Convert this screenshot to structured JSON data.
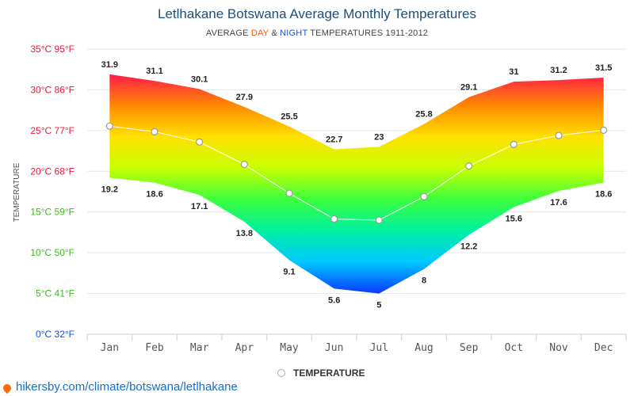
{
  "title": "Letlhakane Botswana Average Monthly Temperatures",
  "subtitle": {
    "prefix": "AVERAGE ",
    "day": "DAY",
    "mid": " & ",
    "night": "NIGHT",
    "suffix": " TEMPERATURES 1911-2012"
  },
  "legend": {
    "label": "TEMPERATURE",
    "marker_color": "#aaaaaa"
  },
  "source_text": "hikersby.com/climate/botswana/letlhakane",
  "colors": {
    "title": "#1f4e79",
    "day_accent": "#ff5a00",
    "night_accent": "#1a4fd6",
    "link": "#1a6fc4",
    "gradient": [
      "#ff1a4a",
      "#ff8a00",
      "#ffe100",
      "#c8ff00",
      "#3cff3c",
      "#00f0a0",
      "#00c8ff",
      "#0a3cff"
    ]
  },
  "chart_data": {
    "type": "area",
    "categories": [
      "Jan",
      "Feb",
      "Mar",
      "Apr",
      "May",
      "Jun",
      "Jul",
      "Aug",
      "Sep",
      "Oct",
      "Nov",
      "Dec"
    ],
    "series": [
      {
        "name": "DAY",
        "values": [
          31.9,
          31.1,
          30.1,
          27.9,
          25.5,
          22.7,
          23,
          25.8,
          29.1,
          31,
          31.2,
          31.5
        ]
      },
      {
        "name": "NIGHT",
        "values": [
          19.2,
          18.6,
          17.1,
          13.8,
          9.1,
          5.6,
          5,
          8,
          12.2,
          15.6,
          17.6,
          18.6
        ]
      },
      {
        "name": "TEMPERATURE",
        "values": [
          25.55,
          24.85,
          23.6,
          20.85,
          17.3,
          14.15,
          14,
          16.9,
          20.65,
          23.3,
          24.4,
          25.05
        ]
      }
    ],
    "day_labels": [
      "31.9",
      "31.1",
      "30.1",
      "27.9",
      "25.5",
      "22.7",
      "23",
      "25.8",
      "29.1",
      "31",
      "31.2",
      "31.5"
    ],
    "night_labels": [
      "19.2",
      "18.6",
      "17.1",
      "13.8",
      "9.1",
      "5.6",
      "5",
      "8",
      "12.2",
      "15.6",
      "17.6",
      "18.6"
    ],
    "ylabel": "TEMPERATURE",
    "ylim": [
      0,
      35
    ],
    "yticks": [
      {
        "value": 35,
        "label": "35°C 95°F",
        "color": "#e8173d"
      },
      {
        "value": 30,
        "label": "30°C 86°F",
        "color": "#e8173d"
      },
      {
        "value": 25,
        "label": "25°C 77°F",
        "color": "#e8173d"
      },
      {
        "value": 20,
        "label": "20°C 68°F",
        "color": "#e8173d"
      },
      {
        "value": 15,
        "label": "15°C 59°F",
        "color": "#3cb81e"
      },
      {
        "value": 10,
        "label": "10°C 50°F",
        "color": "#3cb81e"
      },
      {
        "value": 5,
        "label": "5°C 41°F",
        "color": "#3cb81e"
      },
      {
        "value": 0,
        "label": "0°C 32°F",
        "color": "#1a4fd6"
      }
    ],
    "grid": true,
    "legend_position": "bottom-center"
  }
}
